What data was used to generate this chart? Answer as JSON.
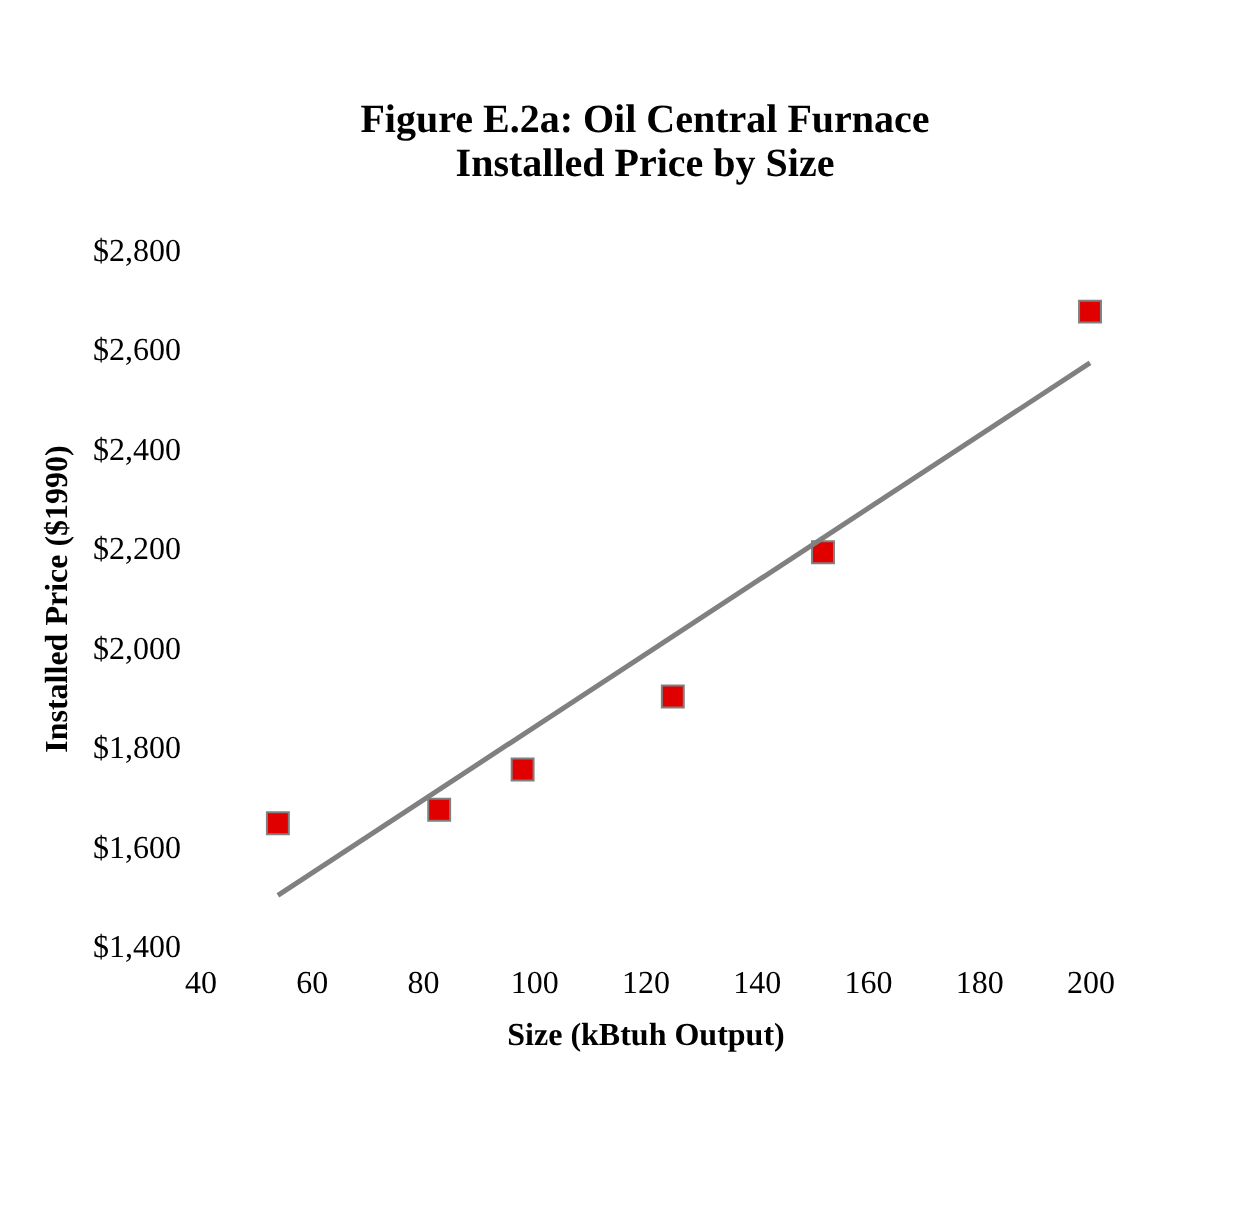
{
  "chart_data": {
    "type": "scatter",
    "title": "Figure E.2a: Oil Central Furnace\nInstalled Price by Size",
    "xlabel": "Size (kBtuh Output)",
    "ylabel": "Installed Price ($1990)",
    "series": [
      {
        "color": "#e00000",
        "marker": "square",
        "x": [
          54,
          83,
          98,
          125,
          152,
          200
        ],
        "values": [
          1647,
          1674,
          1755,
          1902,
          2192,
          2676
        ]
      },
      {
        "type": "line",
        "color": "#808080",
        "marker": "none",
        "x": [
          54,
          200
        ],
        "values": [
          1502,
          2573
        ]
      }
    ],
    "xlim": [
      40,
      200
    ],
    "xticks": [
      40,
      60,
      80,
      100,
      120,
      140,
      160,
      180,
      200
    ],
    "ylim": [
      1400,
      2800
    ],
    "yticks": [
      {
        "value": 1400,
        "label": "$1,400"
      },
      {
        "value": 1600,
        "label": "$1,600"
      },
      {
        "value": 1800,
        "label": "$1,800"
      },
      {
        "value": 2000,
        "label": "$2,000"
      },
      {
        "value": 2200,
        "label": "$2,200"
      },
      {
        "value": 2400,
        "label": "$2,400"
      },
      {
        "value": 2600,
        "label": "$2,600"
      },
      {
        "value": 2800,
        "label": "$2,800"
      }
    ],
    "grid": false
  }
}
